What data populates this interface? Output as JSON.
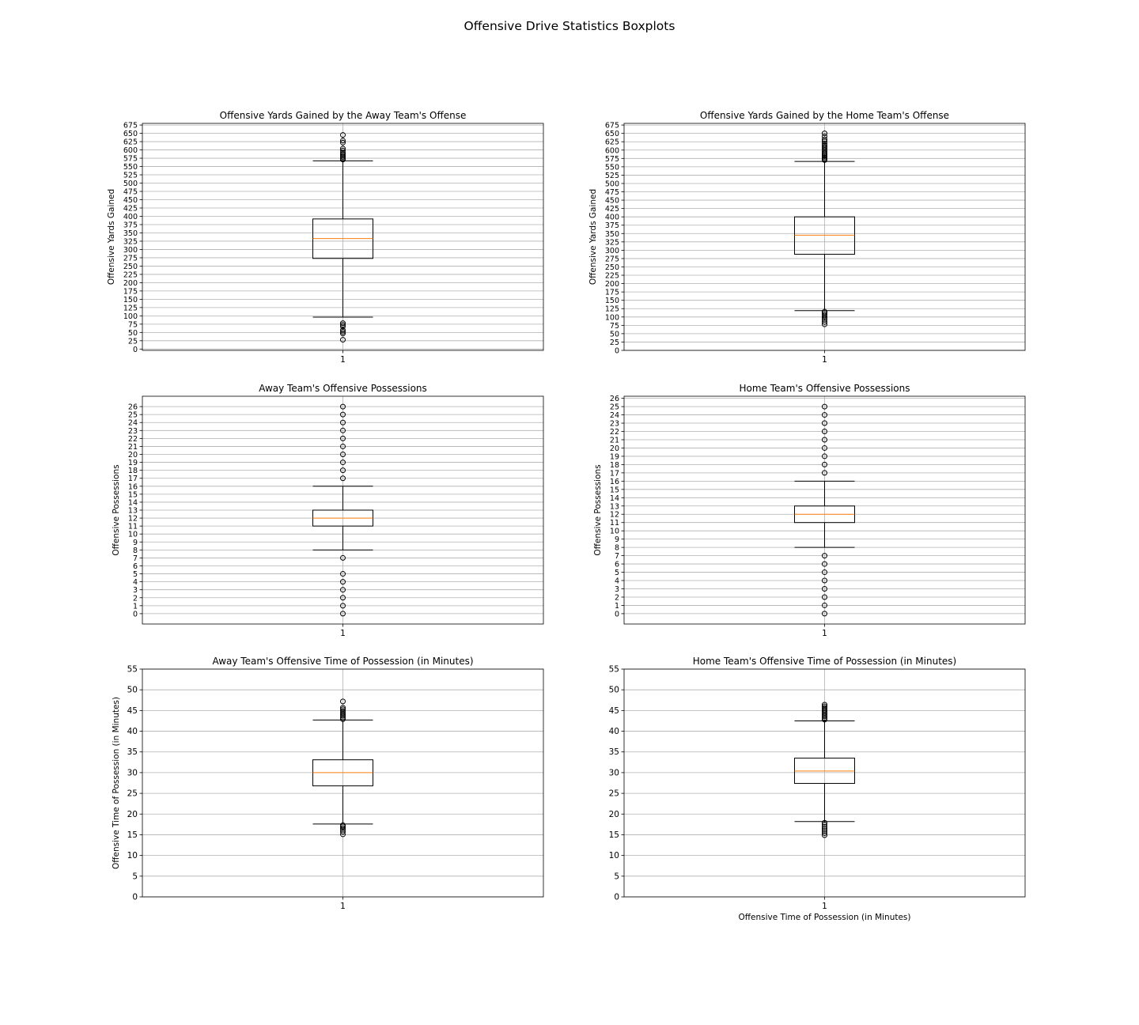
{
  "figure": {
    "suptitle": "Offensive Drive Statistics Boxplots"
  },
  "chart_data": [
    {
      "type": "boxplot",
      "title": "Offensive Yards Gained by the Away Team's Offense",
      "xlabel": "",
      "ylabel": "Offensive Yards Gained",
      "categories": [
        "1"
      ],
      "ylim": [
        -4,
        680
      ],
      "yticks": [
        0,
        25,
        50,
        75,
        100,
        125,
        150,
        175,
        200,
        225,
        250,
        275,
        300,
        325,
        350,
        375,
        400,
        425,
        450,
        475,
        500,
        525,
        550,
        575,
        600,
        625,
        650,
        675
      ],
      "grid": "both",
      "box": {
        "whisker_low": 96,
        "q1": 273,
        "median": 333,
        "q3": 392,
        "whisker_high": 567
      },
      "outliers": [
        28,
        47,
        52,
        57,
        68,
        73,
        78,
        571,
        575,
        579,
        583,
        588,
        592,
        598,
        604,
        622,
        628,
        645
      ]
    },
    {
      "type": "boxplot",
      "title": "Offensive Yards Gained by the Home Team's Offense",
      "xlabel": "",
      "ylabel": "Offensive Yards Gained",
      "categories": [
        "1"
      ],
      "ylim": [
        0,
        680
      ],
      "yticks": [
        0,
        25,
        50,
        75,
        100,
        125,
        150,
        175,
        200,
        225,
        250,
        275,
        300,
        325,
        350,
        375,
        400,
        425,
        450,
        475,
        500,
        525,
        550,
        575,
        600,
        625,
        650,
        675
      ],
      "grid": "both",
      "box": {
        "whisker_low": 119,
        "q1": 288,
        "median": 345,
        "q3": 400,
        "whisker_high": 566
      },
      "outliers": [
        78,
        85,
        92,
        97,
        102,
        107,
        112,
        116,
        570,
        574,
        578,
        582,
        586,
        590,
        595,
        600,
        605,
        610,
        615,
        620,
        626,
        632,
        641,
        650
      ]
    },
    {
      "type": "boxplot",
      "title": "Away Team's Offensive Possessions",
      "xlabel": "",
      "ylabel": "Offensive Possessions",
      "categories": [
        "1"
      ],
      "ylim": [
        -1.3,
        27.3
      ],
      "yticks": [
        0,
        1,
        2,
        3,
        4,
        5,
        6,
        7,
        8,
        9,
        10,
        11,
        12,
        13,
        14,
        15,
        16,
        17,
        18,
        19,
        20,
        21,
        22,
        23,
        24,
        25,
        26
      ],
      "grid": "both",
      "box": {
        "whisker_low": 8,
        "q1": 11,
        "median": 12,
        "q3": 13,
        "whisker_high": 16
      },
      "outliers": [
        0,
        1,
        2,
        3,
        4,
        5,
        7,
        17,
        18,
        19,
        20,
        21,
        22,
        23,
        24,
        25,
        26
      ]
    },
    {
      "type": "boxplot",
      "title": "Home Team's Offensive Possessions",
      "xlabel": "",
      "ylabel": "Offensive Possessions",
      "categories": [
        "1"
      ],
      "ylim": [
        -1.25,
        26.25
      ],
      "yticks": [
        0,
        1,
        2,
        3,
        4,
        5,
        6,
        7,
        8,
        9,
        10,
        11,
        12,
        13,
        14,
        15,
        16,
        17,
        18,
        19,
        20,
        21,
        22,
        23,
        24,
        25,
        26
      ],
      "grid": "both",
      "box": {
        "whisker_low": 8,
        "q1": 11,
        "median": 12,
        "q3": 13,
        "whisker_high": 16
      },
      "outliers": [
        0,
        1,
        2,
        3,
        4,
        5,
        6,
        7,
        17,
        18,
        19,
        20,
        21,
        22,
        23,
        24,
        25
      ]
    },
    {
      "type": "boxplot",
      "title": "Away Team's Offensive Time of Possession (in Minutes)",
      "xlabel": "",
      "ylabel": "Offensive Time of Possession (in Minutes)",
      "categories": [
        "1"
      ],
      "ylim": [
        0,
        55
      ],
      "yticks": [
        0,
        5,
        10,
        15,
        20,
        25,
        30,
        35,
        40,
        45,
        50,
        55
      ],
      "grid": "both",
      "box": {
        "whisker_low": 17.6,
        "q1": 26.8,
        "median": 30.0,
        "q3": 33.1,
        "whisker_high": 42.7
      },
      "outliers": [
        15.1,
        15.7,
        16.2,
        16.6,
        17.0,
        17.3,
        42.9,
        43.3,
        43.7,
        44.1,
        44.5,
        44.9,
        45.3,
        45.7,
        47.2
      ]
    },
    {
      "type": "boxplot",
      "title": "Home Team's Offensive Time of Possession (in Minutes)",
      "xlabel": "Offensive Time of Possession (in Minutes)",
      "ylabel": "",
      "categories": [
        "1"
      ],
      "ylim": [
        0,
        55
      ],
      "yticks": [
        0,
        5,
        10,
        15,
        20,
        25,
        30,
        35,
        40,
        45,
        50,
        55
      ],
      "grid": "both",
      "box": {
        "whisker_low": 18.2,
        "q1": 27.4,
        "median": 30.4,
        "q3": 33.5,
        "whisker_high": 42.5
      },
      "outliers": [
        14.9,
        15.4,
        15.9,
        16.4,
        16.9,
        17.4,
        17.9,
        42.8,
        43.2,
        43.6,
        44.0,
        44.4,
        44.8,
        45.2,
        45.6,
        46.0,
        46.4
      ]
    }
  ]
}
